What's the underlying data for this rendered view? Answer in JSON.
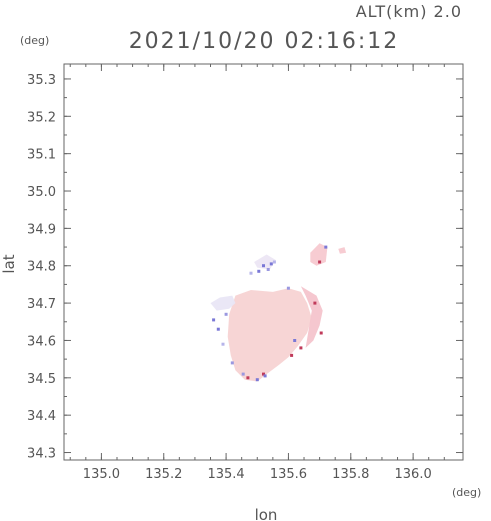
{
  "header": {
    "altitude_text": "ALT(km) 2.0",
    "timestamp_text": "2021/10/20 02:16:12"
  },
  "chart_data": {
    "type": "heatmap",
    "xlabel": "lon",
    "ylabel": "lat",
    "x_unit": "(deg)",
    "y_unit": "(deg)",
    "xlim": [
      134.88,
      136.16
    ],
    "ylim": [
      34.28,
      35.34
    ],
    "x_ticks": [
      135.0,
      135.2,
      135.4,
      135.6,
      135.8,
      136.0
    ],
    "x_tick_labels": [
      "135.0",
      "135.2",
      "135.4",
      "135.6",
      "135.8",
      "136.0"
    ],
    "y_ticks": [
      34.3,
      34.4,
      34.5,
      34.6,
      34.7,
      34.8,
      34.9,
      35.0,
      35.1,
      35.2,
      35.3
    ],
    "y_tick_labels": [
      "34.3",
      "34.4",
      "34.5",
      "34.6",
      "34.7",
      "34.8",
      "34.9",
      "35.0",
      "35.1",
      "35.2",
      "35.3"
    ],
    "echo_regions": [
      {
        "name": "main-cell",
        "color": "#f7d3d3",
        "outline": [
          [
            135.43,
            34.72
          ],
          [
            135.48,
            34.735
          ],
          [
            135.55,
            34.73
          ],
          [
            135.6,
            34.74
          ],
          [
            135.64,
            34.73
          ],
          [
            135.66,
            34.7
          ],
          [
            135.675,
            34.66
          ],
          [
            135.66,
            34.62
          ],
          [
            135.63,
            34.585
          ],
          [
            135.6,
            34.555
          ],
          [
            135.57,
            34.535
          ],
          [
            135.53,
            34.51
          ],
          [
            135.5,
            34.49
          ],
          [
            135.46,
            34.495
          ],
          [
            135.43,
            34.52
          ],
          [
            135.415,
            34.56
          ],
          [
            135.405,
            34.61
          ],
          [
            135.41,
            34.67
          ]
        ]
      },
      {
        "name": "west-fringe",
        "color": "#e9e6f6",
        "outline": [
          [
            135.35,
            34.7
          ],
          [
            135.38,
            34.715
          ],
          [
            135.42,
            34.72
          ],
          [
            135.43,
            34.7
          ],
          [
            135.41,
            34.685
          ],
          [
            135.37,
            34.68
          ]
        ]
      },
      {
        "name": "east-rim",
        "color": "#f4c4cc",
        "outline": [
          [
            135.64,
            34.745
          ],
          [
            135.69,
            34.72
          ],
          [
            135.71,
            34.68
          ],
          [
            135.7,
            34.64
          ],
          [
            135.68,
            34.6
          ],
          [
            135.655,
            34.58
          ],
          [
            135.665,
            34.63
          ],
          [
            135.675,
            34.68
          ],
          [
            135.655,
            34.72
          ]
        ]
      },
      {
        "name": "north-east-cell",
        "color": "#f7c9d0",
        "outline": [
          [
            135.67,
            34.835
          ],
          [
            135.7,
            34.86
          ],
          [
            135.725,
            34.85
          ],
          [
            135.72,
            34.81
          ],
          [
            135.69,
            34.8
          ],
          [
            135.67,
            34.81
          ]
        ]
      },
      {
        "name": "north-east-speck",
        "color": "#f7c9d0",
        "outline": [
          [
            135.76,
            34.845
          ],
          [
            135.78,
            34.85
          ],
          [
            135.785,
            34.835
          ],
          [
            135.765,
            34.832
          ]
        ]
      },
      {
        "name": "north-fringe",
        "color": "#ece6f4",
        "outline": [
          [
            135.49,
            34.81
          ],
          [
            135.53,
            34.83
          ],
          [
            135.56,
            34.815
          ],
          [
            135.54,
            34.79
          ],
          [
            135.5,
            34.795
          ]
        ]
      }
    ],
    "echo_specks": [
      {
        "lon": 135.505,
        "lat": 34.785,
        "color": "#7a78d6"
      },
      {
        "lon": 135.52,
        "lat": 34.8,
        "color": "#7a78d6"
      },
      {
        "lon": 135.545,
        "lat": 34.805,
        "color": "#7a78d6"
      },
      {
        "lon": 135.535,
        "lat": 34.79,
        "color": "#9a98e0"
      },
      {
        "lon": 135.48,
        "lat": 34.78,
        "color": "#b6b4ea"
      },
      {
        "lon": 135.555,
        "lat": 34.81,
        "color": "#b6b4ea"
      },
      {
        "lon": 135.36,
        "lat": 34.655,
        "color": "#7a78d6"
      },
      {
        "lon": 135.375,
        "lat": 34.63,
        "color": "#7a78d6"
      },
      {
        "lon": 135.4,
        "lat": 34.67,
        "color": "#9a98e0"
      },
      {
        "lon": 135.39,
        "lat": 34.59,
        "color": "#b6b4ea"
      },
      {
        "lon": 135.42,
        "lat": 34.54,
        "color": "#9a98e0"
      },
      {
        "lon": 135.7,
        "lat": 34.81,
        "color": "#c03a5a"
      },
      {
        "lon": 135.72,
        "lat": 34.85,
        "color": "#7a78d6"
      },
      {
        "lon": 135.705,
        "lat": 34.62,
        "color": "#c03a5a"
      },
      {
        "lon": 135.685,
        "lat": 34.7,
        "color": "#c03a5a"
      },
      {
        "lon": 135.64,
        "lat": 34.58,
        "color": "#c03a5a"
      },
      {
        "lon": 135.61,
        "lat": 34.56,
        "color": "#c03a5a"
      },
      {
        "lon": 135.62,
        "lat": 34.6,
        "color": "#7a78d6"
      },
      {
        "lon": 135.52,
        "lat": 34.51,
        "color": "#c03a5a"
      },
      {
        "lon": 135.525,
        "lat": 34.505,
        "color": "#7a78d6"
      },
      {
        "lon": 135.5,
        "lat": 34.495,
        "color": "#7a78d6"
      },
      {
        "lon": 135.47,
        "lat": 34.5,
        "color": "#c03a5a"
      },
      {
        "lon": 135.455,
        "lat": 34.51,
        "color": "#9a98e0"
      },
      {
        "lon": 135.6,
        "lat": 34.74,
        "color": "#9a98e0"
      }
    ]
  }
}
